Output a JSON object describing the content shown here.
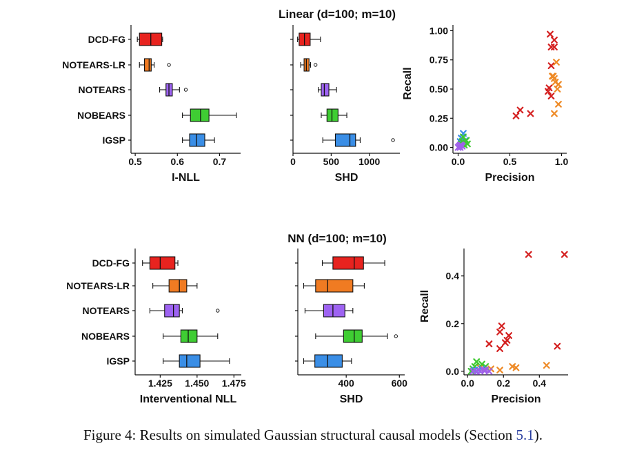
{
  "colors": {
    "DCD-FG": "#e8231f",
    "NOTEARS-LR": "#f07b22",
    "NOTEARS": "#9e63f2",
    "NOBEARS": "#3fcd33",
    "IGSP": "#3a8ee6",
    "scatter_DCD-FG": "#d42020",
    "scatter_NOTEARS-LR": "#ee8a26",
    "scatter_NOTEARS": "#a061e8",
    "scatter_NOBEARS": "#3fc930",
    "scatter_IGSP": "#3a8ee6"
  },
  "chart_data": [
    {
      "panel": "linear_nll",
      "type": "boxplot",
      "group_title": "Linear (d=100; m=10)",
      "xlabel": "I-NLL",
      "xlim": [
        0.49,
        0.75
      ],
      "ticks": [
        0.5,
        0.6,
        0.7
      ],
      "tick_labels": [
        "0.5",
        "0.6",
        "0.7"
      ],
      "categories": [
        "DCD-FG",
        "NOTEARS-LR",
        "NOTEARS",
        "NOBEARS",
        "IGSP"
      ],
      "boxes": [
        {
          "name": "DCD-FG",
          "whislo": 0.505,
          "q1": 0.51,
          "med": 0.537,
          "q3": 0.563,
          "whishi": 0.565,
          "fliers": []
        },
        {
          "name": "NOTEARS-LR",
          "whislo": 0.51,
          "q1": 0.522,
          "med": 0.533,
          "q3": 0.538,
          "whishi": 0.545,
          "fliers": [
            0.58
          ]
        },
        {
          "name": "NOTEARS",
          "whislo": 0.558,
          "q1": 0.573,
          "med": 0.58,
          "q3": 0.588,
          "whishi": 0.605,
          "fliers": [
            0.62
          ]
        },
        {
          "name": "NOBEARS",
          "whislo": 0.612,
          "q1": 0.631,
          "med": 0.655,
          "q3": 0.675,
          "whishi": 0.74,
          "fliers": []
        },
        {
          "name": "IGSP",
          "whislo": 0.612,
          "q1": 0.629,
          "med": 0.645,
          "q3": 0.665,
          "whishi": 0.688,
          "fliers": []
        }
      ]
    },
    {
      "panel": "linear_shd",
      "type": "boxplot",
      "xlabel": "SHD",
      "xlim": [
        0,
        1400
      ],
      "ticks": [
        0,
        500,
        1000
      ],
      "tick_labels": [
        "0",
        "500",
        "1000"
      ],
      "categories": [
        "DCD-FG",
        "NOTEARS-LR",
        "NOTEARS",
        "NOBEARS",
        "IGSP"
      ],
      "boxes": [
        {
          "name": "DCD-FG",
          "whislo": 60,
          "q1": 80,
          "med": 150,
          "q3": 225,
          "whishi": 360,
          "fliers": []
        },
        {
          "name": "NOTEARS-LR",
          "whislo": 100,
          "q1": 145,
          "med": 175,
          "q3": 210,
          "whishi": 230,
          "fliers": [
            295
          ]
        },
        {
          "name": "NOTEARS",
          "whislo": 330,
          "q1": 370,
          "med": 410,
          "q3": 470,
          "whishi": 570,
          "fliers": []
        },
        {
          "name": "NOBEARS",
          "whislo": 370,
          "q1": 445,
          "med": 510,
          "q3": 590,
          "whishi": 705,
          "fliers": []
        },
        {
          "name": "IGSP",
          "whislo": 390,
          "q1": 555,
          "med": 745,
          "q3": 820,
          "whishi": 880,
          "fliers": [
            1310
          ]
        }
      ]
    },
    {
      "panel": "linear_pr",
      "type": "scatter",
      "xlabel": "Precision",
      "ylabel": "Recall",
      "xlim": [
        -0.05,
        1.05
      ],
      "ylim": [
        -0.05,
        1.05
      ],
      "xticks": [
        0.0,
        0.5,
        1.0
      ],
      "xtick_labels": [
        "0.0",
        "0.5",
        "1.0"
      ],
      "yticks": [
        0.0,
        0.25,
        0.5,
        0.75,
        1.0
      ],
      "ytick_labels": [
        "0.00",
        "0.25",
        "0.50",
        "0.75",
        "1.00"
      ],
      "marker": "x",
      "series": [
        {
          "name": "DCD-FG",
          "points": [
            [
              0.89,
              0.97
            ],
            [
              0.93,
              0.92
            ],
            [
              0.9,
              0.86
            ],
            [
              0.93,
              0.86
            ],
            [
              0.9,
              0.7
            ],
            [
              0.88,
              0.51
            ],
            [
              0.87,
              0.48
            ],
            [
              0.9,
              0.44
            ],
            [
              0.6,
              0.32
            ],
            [
              0.56,
              0.27
            ],
            [
              0.7,
              0.29
            ]
          ]
        },
        {
          "name": "NOTEARS-LR",
          "points": [
            [
              0.95,
              0.73
            ],
            [
              0.92,
              0.61
            ],
            [
              0.93,
              0.59
            ],
            [
              0.94,
              0.56
            ],
            [
              0.97,
              0.54
            ],
            [
              0.96,
              0.5
            ],
            [
              0.97,
              0.37
            ],
            [
              0.93,
              0.29
            ],
            [
              0.91,
              0.61
            ]
          ]
        },
        {
          "name": "IGSP",
          "points": [
            [
              0.05,
              0.12
            ],
            [
              0.03,
              0.08
            ],
            [
              0.07,
              0.06
            ],
            [
              0.02,
              0.05
            ]
          ]
        },
        {
          "name": "NOBEARS",
          "points": [
            [
              0.05,
              0.09
            ],
            [
              0.08,
              0.06
            ],
            [
              0.04,
              0.05
            ],
            [
              0.09,
              0.03
            ],
            [
              0.06,
              0.02
            ],
            [
              0.03,
              0.03
            ]
          ]
        },
        {
          "name": "NOTEARS",
          "points": [
            [
              0.01,
              0.01
            ],
            [
              0.02,
              0.0
            ],
            [
              0.03,
              0.02
            ],
            [
              0.04,
              0.01
            ],
            [
              0.0,
              0.0
            ],
            [
              0.02,
              0.02
            ]
          ]
        }
      ]
    },
    {
      "panel": "nn_nll",
      "type": "boxplot",
      "group_title": "NN (d=100; m=10)",
      "xlabel": "Interventional NLL",
      "xlim": [
        1.408,
        1.48
      ],
      "ticks": [
        1.425,
        1.45,
        1.475
      ],
      "tick_labels": [
        "1.425",
        "1.450",
        "1.475"
      ],
      "categories": [
        "DCD-FG",
        "NOTEARS-LR",
        "NOTEARS",
        "NOBEARS",
        "IGSP"
      ],
      "boxes": [
        {
          "name": "DCD-FG",
          "whislo": 1.413,
          "q1": 1.418,
          "med": 1.425,
          "q3": 1.435,
          "whishi": 1.437,
          "fliers": []
        },
        {
          "name": "NOTEARS-LR",
          "whislo": 1.42,
          "q1": 1.431,
          "med": 1.438,
          "q3": 1.443,
          "whishi": 1.45,
          "fliers": []
        },
        {
          "name": "NOTEARS",
          "whislo": 1.418,
          "q1": 1.428,
          "med": 1.434,
          "q3": 1.438,
          "whishi": 1.44,
          "fliers": [
            1.464
          ]
        },
        {
          "name": "NOBEARS",
          "whislo": 1.427,
          "q1": 1.439,
          "med": 1.444,
          "q3": 1.45,
          "whishi": 1.464,
          "fliers": []
        },
        {
          "name": "IGSP",
          "whislo": 1.427,
          "q1": 1.438,
          "med": 1.443,
          "q3": 1.452,
          "whishi": 1.472,
          "fliers": []
        }
      ]
    },
    {
      "panel": "nn_shd",
      "type": "boxplot",
      "xlabel": "SHD",
      "xlim": [
        218,
        620
      ],
      "ticks": [
        400,
        600
      ],
      "tick_labels": [
        "400",
        "600"
      ],
      "categories": [
        "DCD-FG",
        "NOTEARS-LR",
        "NOTEARS",
        "NOBEARS",
        "IGSP"
      ],
      "boxes": [
        {
          "name": "DCD-FG",
          "whislo": 310,
          "q1": 350,
          "med": 430,
          "q3": 465,
          "whishi": 545,
          "fliers": []
        },
        {
          "name": "NOTEARS-LR",
          "whislo": 240,
          "q1": 285,
          "med": 330,
          "q3": 425,
          "whishi": 468,
          "fliers": []
        },
        {
          "name": "NOTEARS",
          "whislo": 245,
          "q1": 315,
          "med": 350,
          "q3": 395,
          "whishi": 425,
          "fliers": []
        },
        {
          "name": "NOBEARS",
          "whislo": 285,
          "q1": 390,
          "med": 430,
          "q3": 460,
          "whishi": 555,
          "fliers": [
            587
          ]
        },
        {
          "name": "IGSP",
          "whislo": 240,
          "q1": 282,
          "med": 330,
          "q3": 385,
          "whishi": 420,
          "fliers": []
        }
      ]
    },
    {
      "panel": "nn_pr",
      "type": "scatter",
      "xlabel": "Precision",
      "ylabel": "Recall",
      "xlim": [
        -0.02,
        0.56
      ],
      "ylim": [
        -0.015,
        0.515
      ],
      "xticks": [
        0.0,
        0.2,
        0.4
      ],
      "xtick_labels": [
        "0.0",
        "0.2",
        "0.4"
      ],
      "yticks": [
        0.0,
        0.2,
        0.4
      ],
      "ytick_labels": [
        "0.0",
        "0.2",
        "0.4"
      ],
      "marker": "x",
      "series": [
        {
          "name": "DCD-FG",
          "points": [
            [
              0.34,
              0.49
            ],
            [
              0.54,
              0.49
            ],
            [
              0.19,
              0.19
            ],
            [
              0.18,
              0.165
            ],
            [
              0.23,
              0.15
            ],
            [
              0.22,
              0.13
            ],
            [
              0.21,
              0.12
            ],
            [
              0.12,
              0.115
            ],
            [
              0.18,
              0.095
            ],
            [
              0.5,
              0.105
            ]
          ]
        },
        {
          "name": "NOTEARS-LR",
          "points": [
            [
              0.44,
              0.025
            ],
            [
              0.27,
              0.015
            ],
            [
              0.25,
              0.02
            ],
            [
              0.18,
              0.005
            ],
            [
              0.13,
              0.01
            ],
            [
              0.07,
              0.015
            ]
          ]
        },
        {
          "name": "NOBEARS",
          "points": [
            [
              0.05,
              0.04
            ],
            [
              0.08,
              0.03
            ],
            [
              0.04,
              0.02
            ],
            [
              0.1,
              0.02
            ],
            [
              0.03,
              0.01
            ],
            [
              0.02,
              0.0
            ]
          ]
        },
        {
          "name": "IGSP",
          "points": [
            [
              0.06,
              0.005
            ],
            [
              0.08,
              0.01
            ],
            [
              0.04,
              0.005
            ]
          ]
        },
        {
          "name": "NOTEARS",
          "points": [
            [
              0.05,
              0.0
            ],
            [
              0.1,
              0.005
            ],
            [
              0.12,
              0.0
            ],
            [
              0.03,
              0.0
            ],
            [
              0.07,
              0.0
            ],
            [
              0.09,
              0.005
            ]
          ]
        }
      ]
    }
  ],
  "caption": {
    "prefix": "Figure 4: Results on simulated Gaussian structural causal models (Section ",
    "ref": "5.1",
    "suffix": ")."
  }
}
